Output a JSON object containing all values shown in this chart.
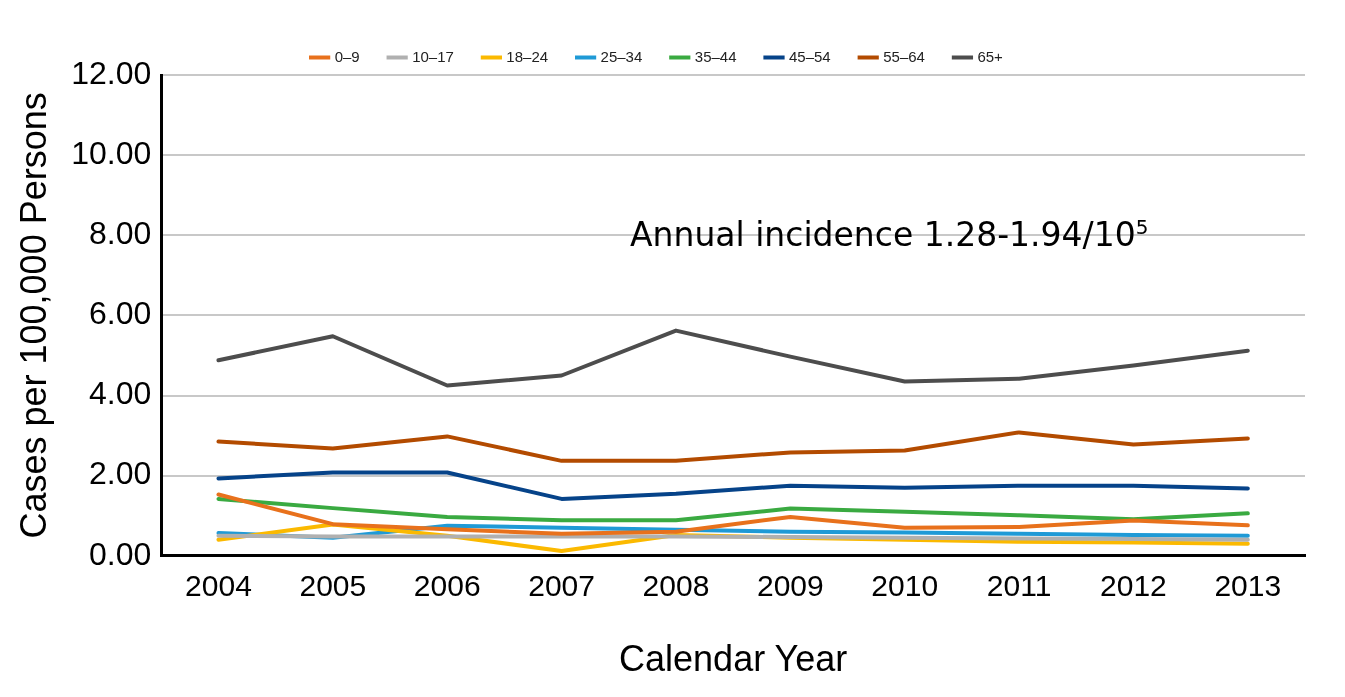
{
  "chart_data": {
    "type": "line",
    "xlabel": "Calendar Year",
    "ylabel": "Cases per 100,000 Persons",
    "categories": [
      "2004",
      "2005",
      "2006",
      "2007",
      "2008",
      "2009",
      "2010",
      "2011",
      "2012",
      "2013"
    ],
    "ylim": [
      0,
      12
    ],
    "yticks": [
      {
        "value": 0,
        "label": "0.00"
      },
      {
        "value": 2,
        "label": "2.00"
      },
      {
        "value": 4,
        "label": "4.00"
      },
      {
        "value": 6,
        "label": "6.00"
      },
      {
        "value": 8,
        "label": "8.00"
      },
      {
        "value": 10,
        "label": "10.00"
      },
      {
        "value": 12,
        "label": "12.00"
      }
    ],
    "grid": "y",
    "legend": "top",
    "marker": "none",
    "line_style": "solid",
    "annotations": [
      "Annual incidence 1.28-1.94/10$^{5}$"
    ],
    "series": [
      {
        "name": "0–9",
        "color": "#e8711c",
        "values": [
          1.53,
          0.79,
          0.66,
          0.55,
          0.6,
          0.97,
          0.7,
          0.72,
          0.88,
          0.76
        ]
      },
      {
        "name": "10–17",
        "color": "#b0b0b0",
        "values": [
          0.5,
          0.48,
          0.48,
          0.48,
          0.48,
          0.47,
          0.45,
          0.43,
          0.42,
          0.4
        ]
      },
      {
        "name": "18–24",
        "color": "#fbb900",
        "values": [
          0.4,
          0.78,
          0.5,
          0.12,
          0.52,
          0.45,
          0.4,
          0.35,
          0.33,
          0.3
        ]
      },
      {
        "name": "25–34",
        "color": "#1f9ad6",
        "values": [
          0.57,
          0.45,
          0.75,
          0.7,
          0.65,
          0.6,
          0.58,
          0.55,
          0.52,
          0.5
        ]
      },
      {
        "name": "35–44",
        "color": "#3aaa41",
        "values": [
          1.42,
          1.19,
          0.97,
          0.89,
          0.89,
          1.18,
          1.1,
          1.01,
          0.91,
          1.06
        ]
      },
      {
        "name": "45–54",
        "color": "#064389",
        "values": [
          1.93,
          2.08,
          2.08,
          1.42,
          1.55,
          1.75,
          1.7,
          1.75,
          1.75,
          1.68
        ]
      },
      {
        "name": "55–64",
        "color": "#b34b00",
        "values": [
          2.85,
          2.68,
          2.98,
          2.37,
          2.37,
          2.58,
          2.63,
          3.08,
          2.78,
          2.93
        ]
      },
      {
        "name": "65+",
        "color": "#4d4d4d",
        "values": [
          4.88,
          5.48,
          4.25,
          4.5,
          5.62,
          4.97,
          4.35,
          4.42,
          4.75,
          5.12
        ]
      }
    ]
  }
}
